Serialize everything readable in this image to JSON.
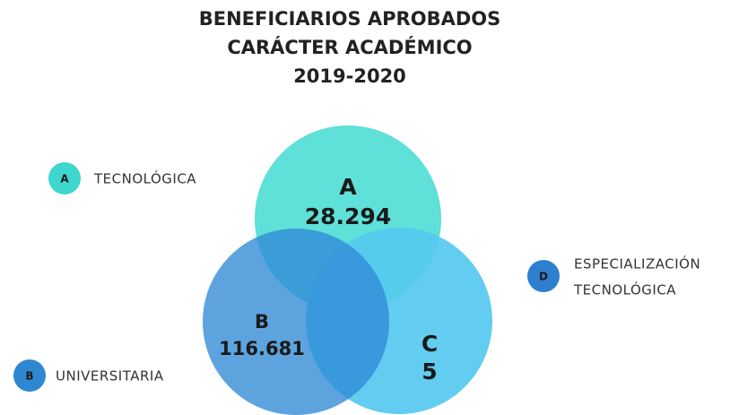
{
  "title": [
    "BENEFICIARIOS APROBADOS",
    "CARÁCTER ACADÉMICO",
    "2019-2020"
  ],
  "circles": [
    {
      "letter": "A",
      "value": "28.294"
    },
    {
      "letter": "B",
      "value": "116.681"
    },
    {
      "letter": "C",
      "value": "5"
    }
  ],
  "legend": [
    {
      "badge": "A",
      "label": [
        "TECNOLÓGICA"
      ]
    },
    {
      "badge": "B",
      "label": [
        "UNIVERSITARIA"
      ]
    },
    {
      "badge": "D",
      "label": [
        "ESPECIALIZACIÓN",
        "TECNOLÓGICA"
      ]
    }
  ]
}
